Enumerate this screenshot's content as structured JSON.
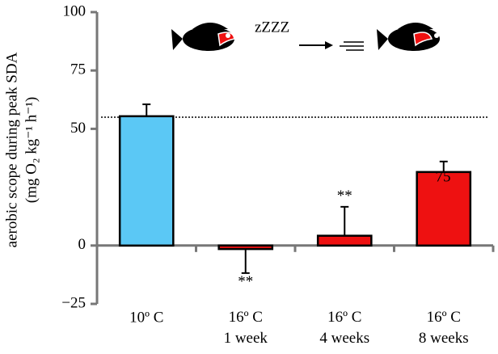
{
  "chart_data": {
    "type": "bar",
    "y_label": [
      "aerobic scope during peak SDA",
      "(mg O₂ kg⁻¹ h⁻¹)"
    ],
    "categories": [
      "10º C",
      "16º C\n1 week",
      "16º C\n4 weeks",
      "16º C\n8 weeks"
    ],
    "values": [
      55.4,
      -1.5,
      4.2,
      31.5
    ],
    "errors": [
      5.1,
      10.3,
      12.4,
      4.5
    ],
    "colors": [
      "#5bc8f5",
      "#ee1111",
      "#ee1111",
      "#ee1111"
    ],
    "significance": [
      null,
      "**",
      "**",
      null
    ],
    "reference_line": 55,
    "annotations": [
      {
        "text": "zZZZ"
      },
      {
        "text": "75"
      }
    ],
    "ylim": [
      -25,
      100
    ],
    "yticks": [
      {
        "value": -25,
        "label": "−25"
      },
      0,
      50,
      75,
      100
    ]
  }
}
